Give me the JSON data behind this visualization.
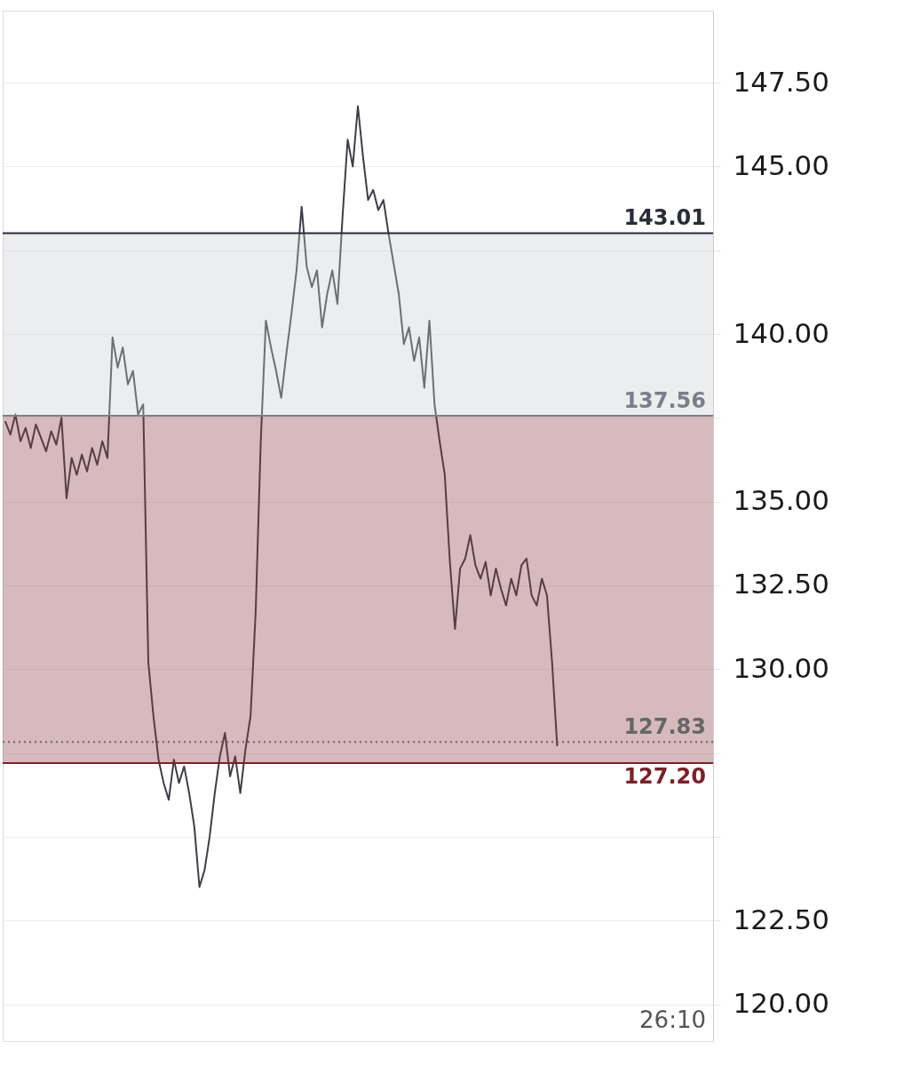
{
  "chart_data": {
    "type": "line",
    "categories": [
      null,
      null,
      null,
      null,
      null,
      null,
      null,
      null,
      null,
      null,
      null,
      null,
      null,
      null,
      null,
      null,
      null,
      null,
      null,
      null,
      null,
      null,
      null,
      null,
      null,
      null,
      null,
      null,
      null,
      null,
      null,
      null,
      null,
      null,
      null,
      null,
      null,
      null,
      null,
      null,
      null,
      null,
      null,
      null,
      null,
      null,
      null,
      null,
      null,
      null,
      null,
      null,
      null,
      null,
      null,
      null,
      null,
      null,
      null,
      null,
      null,
      null,
      null,
      null,
      null,
      null,
      null,
      null,
      null,
      null,
      null,
      null,
      null,
      null,
      null,
      null,
      null,
      null,
      null,
      null,
      null,
      null,
      null,
      null,
      null,
      null,
      null,
      null,
      null,
      null,
      null,
      null,
      null,
      null,
      null,
      null,
      null,
      null,
      null,
      null,
      null,
      null,
      null,
      null,
      null,
      null,
      null,
      null,
      null,
      null,
      null,
      null,
      null,
      null,
      null,
      null,
      null,
      null,
      null,
      null,
      null,
      null,
      null,
      null,
      null,
      null,
      null,
      null,
      null,
      null,
      null,
      null,
      null,
      null,
      null,
      null,
      null,
      null,
      null
    ],
    "series": [
      {
        "color": "#3d3e48",
        "values": [
          137.4,
          137.0,
          137.6,
          136.8,
          137.2,
          136.6,
          137.3,
          136.9,
          136.5,
          137.1,
          136.7,
          137.5,
          135.1,
          136.3,
          135.8,
          136.4,
          135.9,
          136.6,
          136.1,
          136.8,
          136.3,
          139.9,
          139.0,
          139.6,
          138.5,
          138.9,
          137.6,
          137.9,
          130.2,
          128.6,
          127.3,
          126.6,
          126.1,
          127.3,
          126.6,
          127.1,
          126.3,
          125.3,
          123.5,
          124.0,
          125.0,
          126.3,
          127.4,
          128.1,
          126.8,
          127.4,
          126.3,
          127.6,
          128.6,
          131.7,
          136.8,
          140.4,
          139.6,
          138.9,
          138.1,
          139.4,
          140.6,
          141.9,
          143.8,
          142.0,
          141.4,
          141.9,
          140.2,
          141.2,
          141.9,
          140.9,
          143.5,
          145.8,
          145.0,
          146.8,
          145.3,
          144.0,
          144.3,
          143.7,
          144.0,
          143.0,
          142.1,
          141.2,
          139.7,
          140.2,
          139.2,
          139.9,
          138.4,
          140.4,
          137.9,
          136.8,
          135.8,
          133.2,
          131.2,
          133.0,
          133.3,
          134.0,
          133.1,
          132.7,
          133.2,
          132.2,
          133.0,
          132.4,
          131.9,
          132.7,
          132.2,
          133.1,
          133.3,
          132.2,
          131.9,
          132.7,
          132.2,
          130.2,
          127.7,
          null,
          null,
          null,
          null,
          null,
          null,
          null,
          null,
          null,
          null,
          null,
          null,
          null,
          null,
          null,
          null,
          null,
          null,
          null,
          null,
          null,
          null,
          null,
          null,
          null,
          null,
          null,
          null,
          null,
          null
        ]
      }
    ],
    "ylim": [
      118.9,
      149.65
    ],
    "yticks": [
      {
        "value": 120,
        "label": "120.00"
      },
      {
        "value": 122.5,
        "label": "122.50"
      },
      {
        "value": 125,
        "label": null
      },
      {
        "value": 127.5,
        "label": null
      },
      {
        "value": 130,
        "label": "130.00"
      },
      {
        "value": 132.5,
        "label": "132.50"
      },
      {
        "value": 135,
        "label": "135.00"
      },
      {
        "value": 137.5,
        "label": null
      },
      {
        "value": 140,
        "label": "140.00"
      },
      {
        "value": 142.5,
        "label": null
      },
      {
        "value": 145,
        "label": "145.00"
      },
      {
        "value": 147.5,
        "label": "147.50"
      }
    ],
    "grid": "y",
    "tick_labels": "y",
    "bands": [
      {
        "axis": "y",
        "from": 137.56,
        "to": 143.01,
        "color": "#c9cacd"
      },
      {
        "axis": "y",
        "from": 127.2,
        "to": 137.56,
        "color": "#8b3a44"
      }
    ],
    "ref_lines": [
      {
        "axis": "y",
        "value": 143.01,
        "label": "143.01",
        "color": "#2a2c36"
      },
      {
        "axis": "y",
        "value": 137.56,
        "label": "137.56",
        "color": "#7c7e8a"
      },
      {
        "axis": "y",
        "value": 127.83,
        "label": "127.83",
        "color": "#666666",
        "line_style": "dotted"
      },
      {
        "axis": "y",
        "value": 127.2,
        "label": "127.20",
        "color": "#7a2228"
      }
    ],
    "annotations": [
      "26:10"
    ]
  }
}
